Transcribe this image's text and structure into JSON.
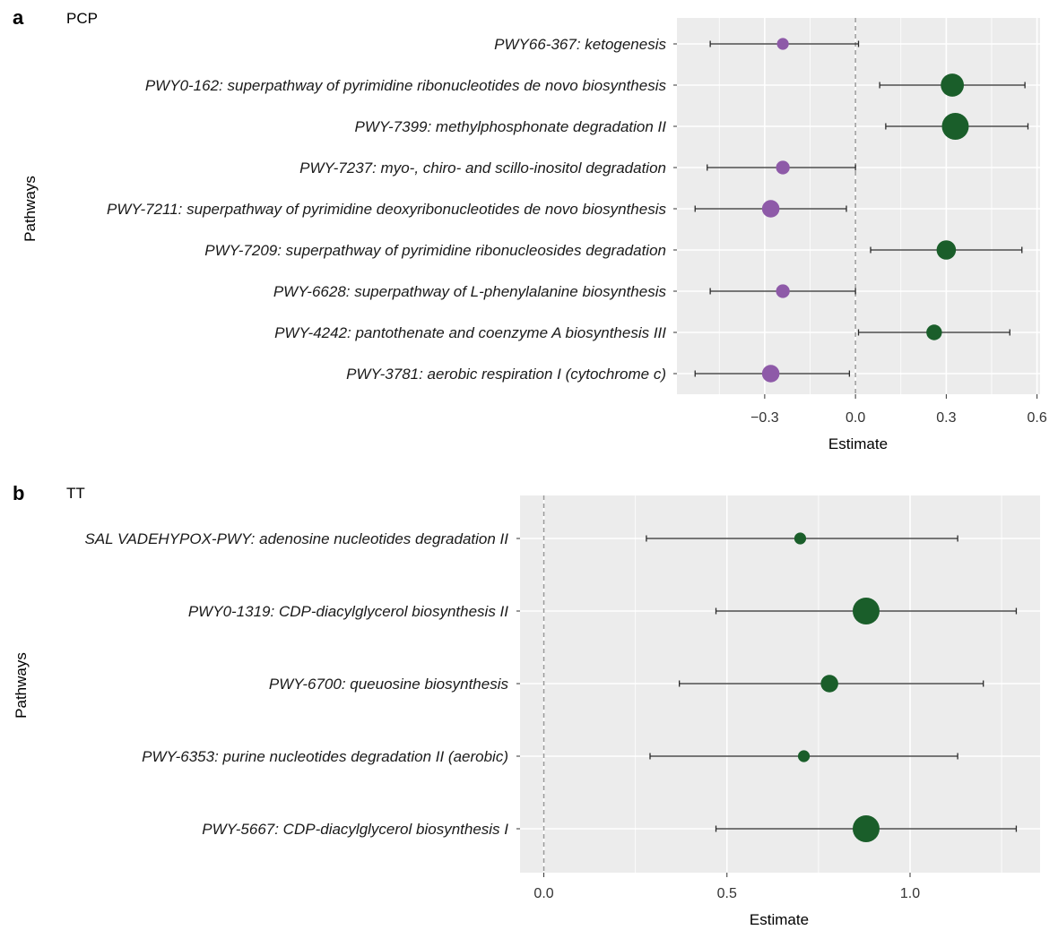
{
  "chart_data": [
    {
      "type": "scatter",
      "panel_letter": "a",
      "title": "PCP",
      "xlabel": "Estimate",
      "ylabel": "Pathways",
      "xlim": [
        -0.59,
        0.61
      ],
      "xticks": [
        "-0.3",
        "0.0",
        "0.3",
        "0.6"
      ],
      "xtick_values": [
        -0.3,
        0.0,
        0.3,
        0.6
      ],
      "reference_line": 0,
      "grid": true,
      "colors": {
        "positive": "#1a5e2a",
        "negative": "#8e5aa8",
        "panel_bg": "#ececec",
        "grid": "#ffffff"
      },
      "points": [
        {
          "label": "PWY66-367: ketogenesis",
          "estimate": -0.24,
          "low": -0.48,
          "high": 0.01,
          "size": 1
        },
        {
          "label": "PWY0-162: superpathway of pyrimidine ribonucleotides de novo biosynthesis",
          "estimate": 0.32,
          "low": 0.08,
          "high": 0.56,
          "size": 4
        },
        {
          "label": "PWY-7399: methylphosphonate degradation II",
          "estimate": 0.33,
          "low": 0.1,
          "high": 0.57,
          "size": 5
        },
        {
          "label": "PWY-7237: myo-, chiro- and scillo-inositol degradation",
          "estimate": -0.24,
          "low": -0.49,
          "high": 0.0,
          "size": 1.5
        },
        {
          "label": "PWY-7211: superpathway of pyrimidine deoxyribonucleotides de novo biosynthesis",
          "estimate": -0.28,
          "low": -0.53,
          "high": -0.03,
          "size": 2.5
        },
        {
          "label": "PWY-7209: superpathway of pyrimidine ribonucleosides degradation",
          "estimate": 0.3,
          "low": 0.05,
          "high": 0.55,
          "size": 3
        },
        {
          "label": "PWY-6628: superpathway of L-phenylalanine biosynthesis",
          "estimate": -0.24,
          "low": -0.48,
          "high": 0.0,
          "size": 1.5
        },
        {
          "label": "PWY-4242: pantothenate and coenzyme A biosynthesis III",
          "estimate": 0.26,
          "low": 0.01,
          "high": 0.51,
          "size": 2
        },
        {
          "label": "PWY-3781: aerobic respiration I (cytochrome c)",
          "estimate": -0.28,
          "low": -0.53,
          "high": -0.02,
          "size": 2.5
        }
      ]
    },
    {
      "type": "scatter",
      "panel_letter": "b",
      "title": "TT",
      "xlabel": "Estimate",
      "ylabel": "Pathways",
      "xlim": [
        -0.065,
        1.355
      ],
      "xticks": [
        "0.0",
        "0.5",
        "1.0"
      ],
      "xtick_values": [
        0.0,
        0.5,
        1.0
      ],
      "reference_line": 0,
      "grid": true,
      "colors": {
        "positive": "#1a5e2a",
        "negative": "#8e5aa8",
        "panel_bg": "#ececec",
        "grid": "#ffffff"
      },
      "points": [
        {
          "label": "SAL VADEHYPOX-PWY: adenosine nucleotides degradation II",
          "estimate": 0.7,
          "low": 0.28,
          "high": 1.13,
          "size": 1
        },
        {
          "label": "PWY0-1319: CDP-diacylglycerol biosynthesis II",
          "estimate": 0.88,
          "low": 0.47,
          "high": 1.29,
          "size": 5
        },
        {
          "label": "PWY-6700: queuosine biosynthesis",
          "estimate": 0.78,
          "low": 0.37,
          "high": 1.2,
          "size": 2.5
        },
        {
          "label": "PWY-6353: purine nucleotides degradation II (aerobic)",
          "estimate": 0.71,
          "low": 0.29,
          "high": 1.13,
          "size": 1
        },
        {
          "label": "PWY-5667: CDP-diacylglycerol biosynthesis I",
          "estimate": 0.88,
          "low": 0.47,
          "high": 1.29,
          "size": 5
        }
      ]
    }
  ]
}
